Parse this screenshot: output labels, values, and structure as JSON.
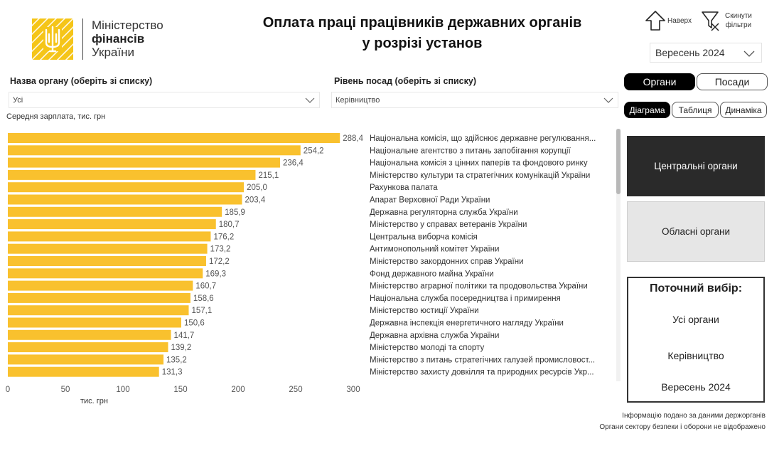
{
  "logo": {
    "line1": "Міністерство",
    "line2": "фінансів",
    "line3": "України"
  },
  "title": {
    "line1": "Оплата праці працівників державних органів",
    "line2": "у розрізі установ"
  },
  "nav": {
    "up_label": "Наверх",
    "reset_line1": "Скинути",
    "reset_line2": "фільтри"
  },
  "month_select": {
    "value": "Вересень 2024"
  },
  "filters": {
    "organ_label": "Назва органу (оберіть зі списку)",
    "organ_value": "Усі",
    "level_label": "Рівень посад (оберіть зі списку)",
    "level_value": "Керівництво"
  },
  "view_toggle": {
    "organs": "Органи",
    "positions": "Посади",
    "active": "organs"
  },
  "display_toggle": {
    "diagram": "Діаграма",
    "table": "Таблиця",
    "dynamics": "Динаміка",
    "active": "diagram"
  },
  "side_panels": {
    "central": "Центральні органи",
    "regional": "Обласні органи",
    "active": "central"
  },
  "current_selection": {
    "title": "Поточний вибір:",
    "organ": "Усі органи",
    "level": "Керівництво",
    "month": "Вересень 2024"
  },
  "colors": {
    "bar": "#f9c12e",
    "accent": "#000000",
    "logo": "#f5c518"
  },
  "chart_data": {
    "type": "bar",
    "orientation": "horizontal",
    "title": "Середня зарплата, тис. грн",
    "xlabel": "тис. грн",
    "xlim": [
      0,
      300
    ],
    "x_ticks": [
      0,
      50,
      100,
      150,
      200,
      250,
      300
    ],
    "grid": false,
    "categories": [
      "Національна комісія, що здійснює державне регулювання...",
      "Національне агентство з питань запобігання корупції",
      "Національна комісія з цінних паперів та фондового ринку",
      "Міністерство культури та стратегічних комунікацій України",
      "Рахункова палата",
      "Апарат Верховної Ради України",
      "Державна регуляторна служба України",
      "Міністерство у справах ветеранів України",
      "Центральна виборча комісія",
      "Антимонопольний комітет України",
      "Міністерство закордонних справ України",
      "Фонд державного майна України",
      "Міністерство аграрної політики та продовольства України",
      "Національна служба посередництва і примирення",
      "Міністерство юстиції України",
      "Державна інспекція енергетичного нагляду України",
      "Державна архівна служба України",
      "Міністерство молоді та спорту",
      "Міністерство з питань стратегічних галузей промисловост...",
      "Міністерство захисту довкілля та природних ресурсів Укр..."
    ],
    "values": [
      288.4,
      254.2,
      236.4,
      215.1,
      205.0,
      203.4,
      185.9,
      180.7,
      176.2,
      173.2,
      172.2,
      169.3,
      160.7,
      158.6,
      157.1,
      150.6,
      141.7,
      139.2,
      135.2,
      131.3
    ],
    "value_labels": [
      "288,4",
      "254,2",
      "236,4",
      "215,1",
      "205,0",
      "203,4",
      "185,9",
      "180,7",
      "176,2",
      "173,2",
      "172,2",
      "169,3",
      "160,7",
      "158,6",
      "157,1",
      "150,6",
      "141,7",
      "139,2",
      "135,2",
      "131,3"
    ]
  },
  "footnotes": {
    "line1": "Інформацію подано за даними держорганів",
    "line2": "Органи сектору безпеки і оборони не відображено"
  }
}
